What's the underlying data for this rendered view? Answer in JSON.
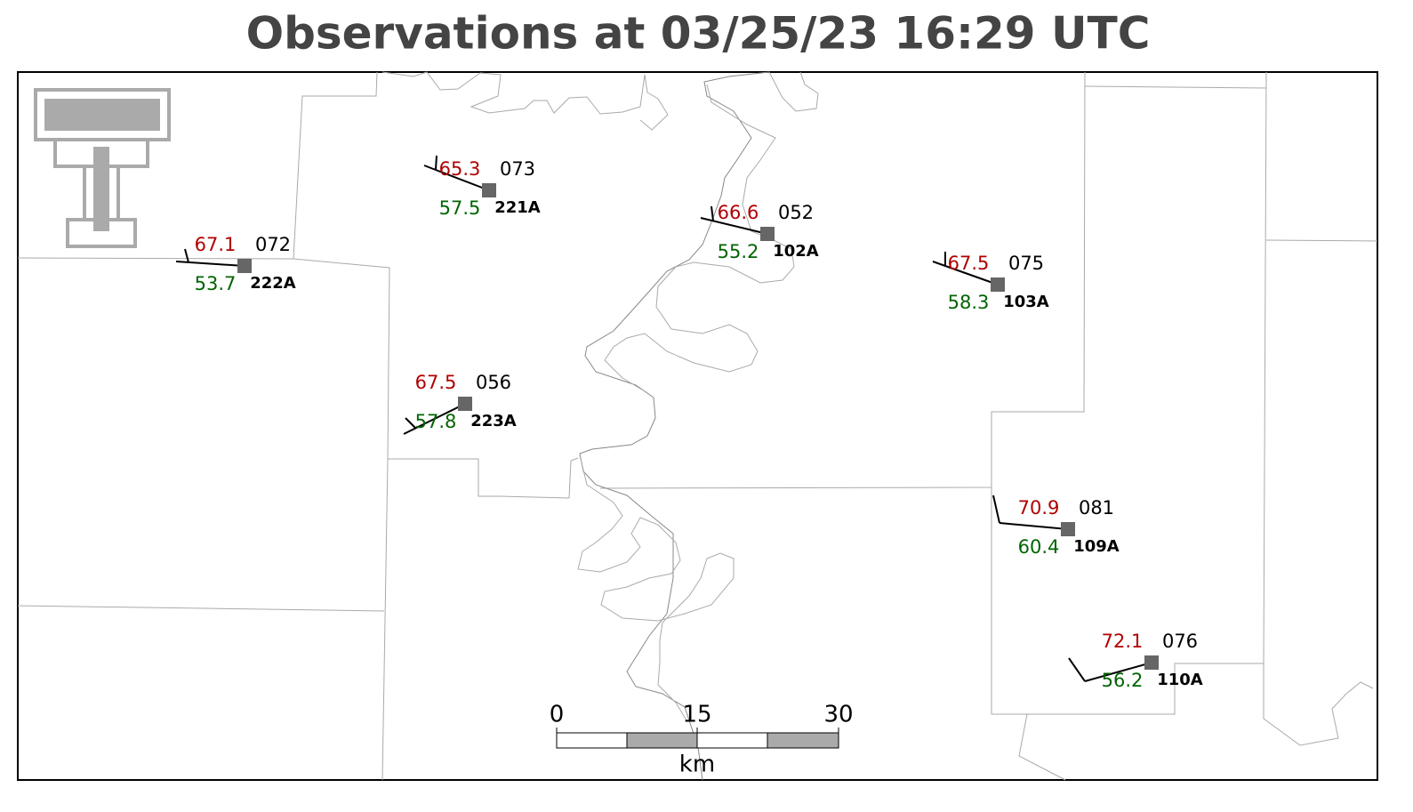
{
  "title": "Observations at 03/25/23 16:29 UTC",
  "stations": [
    {
      "id": "222A",
      "temperature": "67.1",
      "dewpoint": "53.7",
      "pressure": "072"
    },
    {
      "id": "221A",
      "temperature": "65.3",
      "dewpoint": "57.5",
      "pressure": "073"
    },
    {
      "id": "102A",
      "temperature": "66.6",
      "dewpoint": "55.2",
      "pressure": "052"
    },
    {
      "id": "103A",
      "temperature": "67.5",
      "dewpoint": "58.3",
      "pressure": "075"
    },
    {
      "id": "223A",
      "temperature": "67.5",
      "dewpoint": "57.8",
      "pressure": "056"
    },
    {
      "id": "109A",
      "temperature": "70.9",
      "dewpoint": "60.4",
      "pressure": "081"
    },
    {
      "id": "110A",
      "temperature": "72.1",
      "dewpoint": "56.2",
      "pressure": "076"
    }
  ],
  "scale_bar": {
    "ticks": [
      "0",
      "15",
      "30"
    ],
    "unit": "km"
  }
}
